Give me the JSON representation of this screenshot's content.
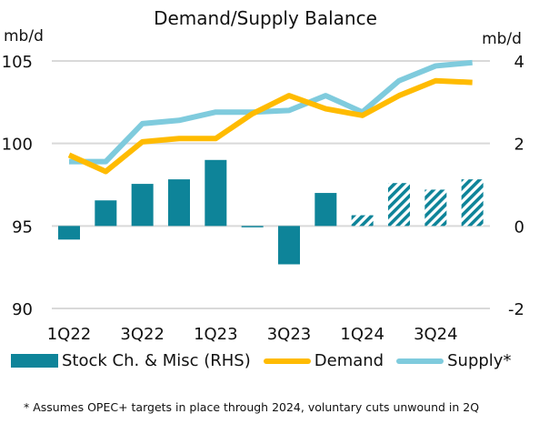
{
  "chart_data": {
    "type": "bar+line",
    "title": "Demand/Supply Balance",
    "left_axis": {
      "label": "mb/d",
      "ticks": [
        90,
        95,
        100,
        105
      ],
      "range": [
        90,
        105
      ]
    },
    "right_axis": {
      "label": "mb/d",
      "ticks": [
        -2,
        0,
        2,
        4
      ],
      "range": [
        -2,
        4
      ]
    },
    "categories": [
      "1Q22",
      "2Q22",
      "3Q22",
      "4Q22",
      "1Q23",
      "2Q23",
      "3Q23",
      "4Q23",
      "1Q24",
      "2Q24",
      "3Q24",
      "4Q24"
    ],
    "x_tick_labels": [
      "1Q22",
      "3Q22",
      "1Q23",
      "3Q23",
      "1Q24",
      "3Q24"
    ],
    "grid": true,
    "series": [
      {
        "name": "Stock Ch. & Misc (RHS)",
        "type": "bar",
        "axis": "right",
        "color": "#0E8499",
        "values": [
          -0.33,
          0.62,
          1.02,
          1.13,
          1.6,
          -0.02,
          -0.93,
          0.8,
          0.26,
          1.04,
          0.88,
          1.13
        ],
        "forecast_from_index": 8
      },
      {
        "name": "Demand",
        "type": "line",
        "axis": "left",
        "color": "#FFBB00",
        "values": [
          99.3,
          98.3,
          100.1,
          100.3,
          100.3,
          101.8,
          102.9,
          102.1,
          101.7,
          102.9,
          103.8,
          103.7
        ]
      },
      {
        "name": "Supply*",
        "type": "line",
        "axis": "left",
        "color": "#7FCBDD",
        "values": [
          98.9,
          98.9,
          101.2,
          101.4,
          101.9,
          101.9,
          102.0,
          102.9,
          101.9,
          103.8,
          104.7,
          104.9
        ]
      }
    ],
    "legend": [
      "Stock Ch. & Misc (RHS)",
      "Demand",
      "Supply*"
    ],
    "legend_position": "bottom",
    "footnote": "* Assumes OPEC+ targets in place through 2024, voluntary cuts unwound in 2Q"
  }
}
